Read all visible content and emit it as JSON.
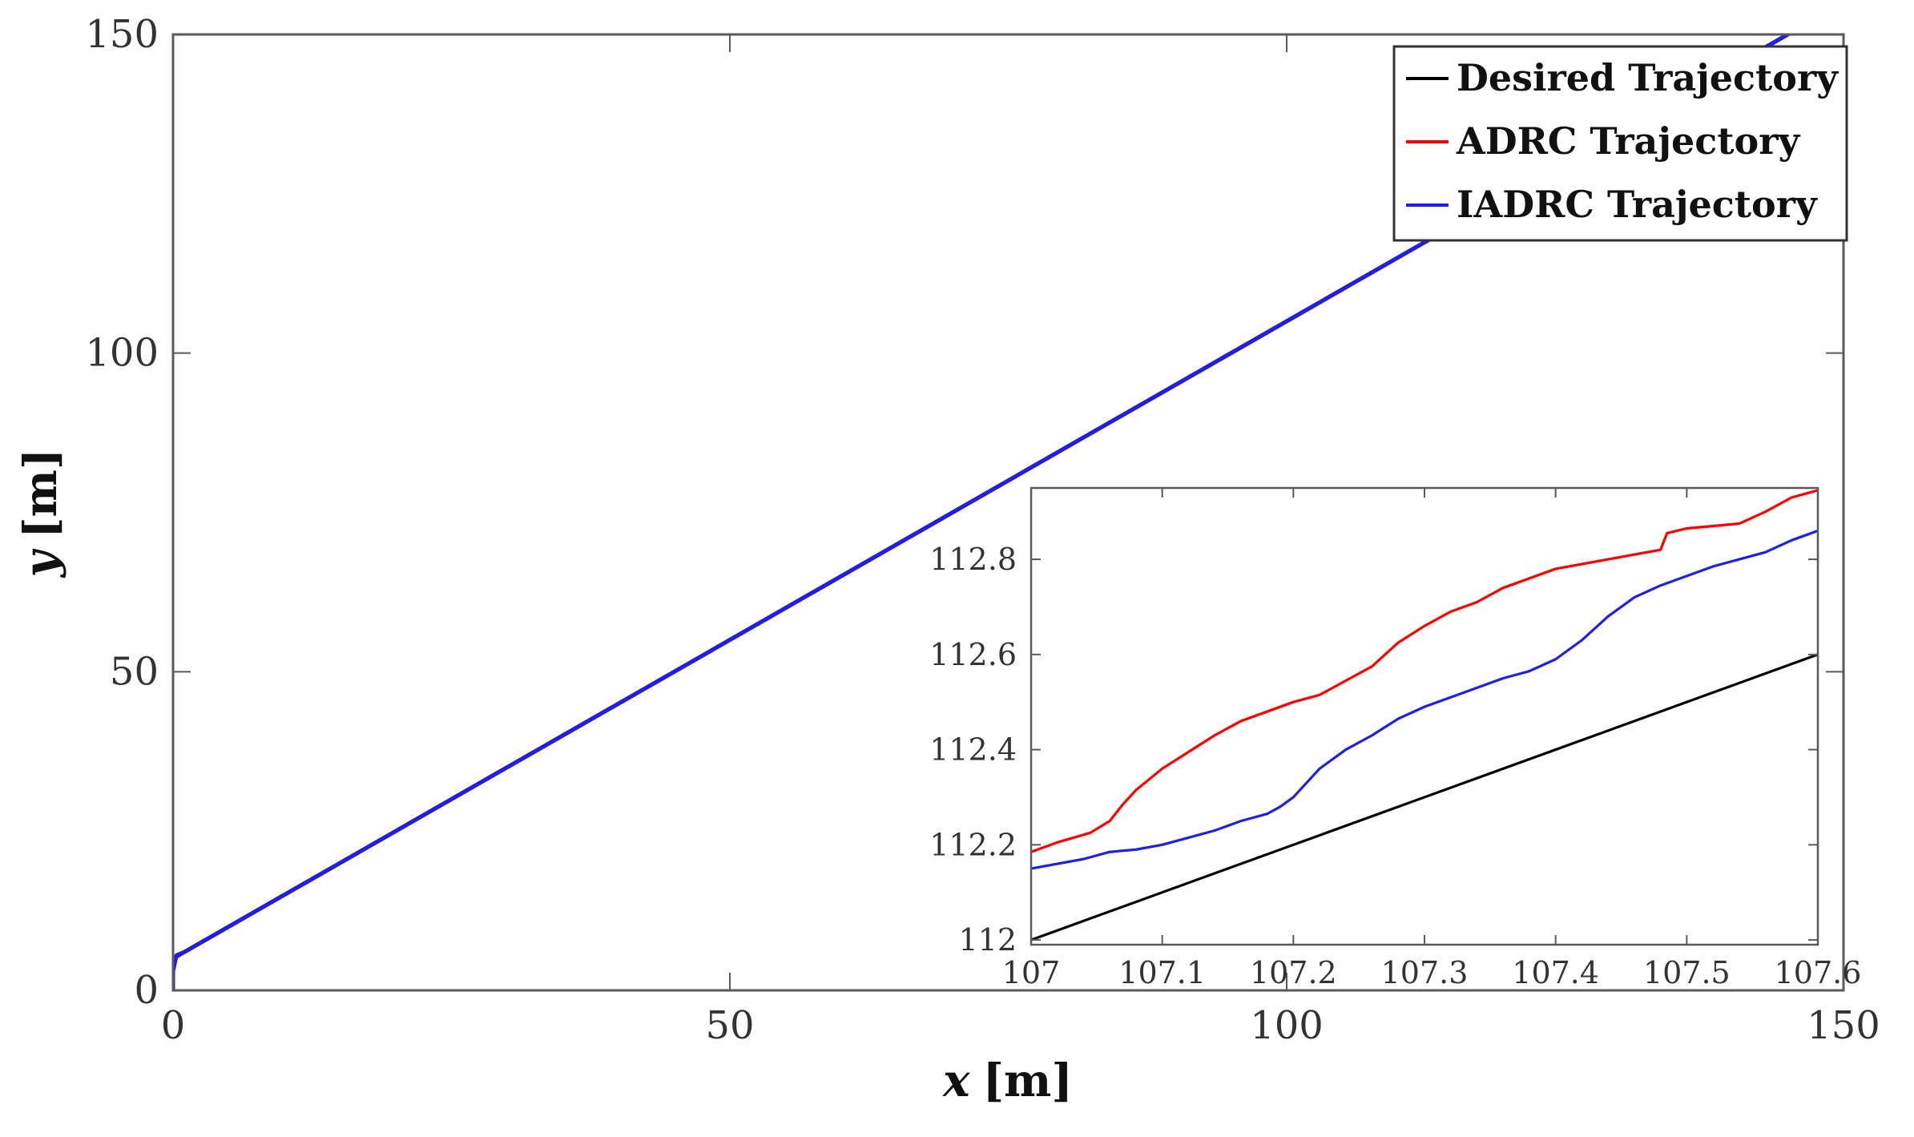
{
  "chart_data": [
    {
      "type": "line",
      "xlabel_var": "x",
      "xlabel_unit": "[m]",
      "ylabel_var": "y",
      "ylabel_unit": "[m]",
      "xlim": [
        0,
        150
      ],
      "ylim": [
        0,
        150
      ],
      "xticks": [
        0,
        50,
        100,
        150
      ],
      "yticks": [
        0,
        50,
        100,
        150
      ],
      "xtick_labels": [
        "0",
        "50",
        "100",
        "150"
      ],
      "ytick_labels": [
        "0",
        "50",
        "100",
        "150"
      ],
      "grid": false,
      "legend_position": "top-right",
      "series": [
        {
          "name": "Desired Trajectory",
          "color": "#000000",
          "x": [
            0,
            150
          ],
          "y": [
            5,
            155
          ]
        },
        {
          "name": "ADRC Trajectory",
          "color": "#ff0000",
          "x": [
            0,
            0,
            0.3,
            1,
            150
          ],
          "y": [
            0,
            3,
            5.5,
            6,
            155
          ]
        },
        {
          "name": "IADRC Trajectory",
          "color": "#1f1fe6",
          "x": [
            0,
            0,
            0.3,
            1,
            20,
            40,
            60,
            80,
            100,
            150
          ],
          "y": [
            0,
            3,
            5.5,
            6,
            25,
            45,
            65,
            85,
            105,
            155
          ]
        }
      ]
    },
    {
      "type": "line",
      "inset": true,
      "xlim": [
        107,
        107.6
      ],
      "ylim": [
        111.99,
        112.95
      ],
      "xticks": [
        107,
        107.1,
        107.2,
        107.3,
        107.4,
        107.5,
        107.6
      ],
      "yticks": [
        112,
        112.2,
        112.4,
        112.6,
        112.8
      ],
      "xtick_labels": [
        "107",
        "107.1",
        "107.2",
        "107.3",
        "107.4",
        "107.5",
        "107.6"
      ],
      "ytick_labels": [
        "112",
        "112.2",
        "112.4",
        "112.6",
        "112.8"
      ],
      "series": [
        {
          "name": "Desired Trajectory",
          "color": "#000000",
          "x": [
            107,
            107.6
          ],
          "y": [
            112.0,
            112.6
          ]
        },
        {
          "name": "ADRC Trajectory",
          "color": "#ff0000",
          "x": [
            107,
            107.02,
            107.045,
            107.06,
            107.07,
            107.08,
            107.1,
            107.12,
            107.14,
            107.16,
            107.18,
            107.2,
            107.22,
            107.24,
            107.26,
            107.28,
            107.3,
            107.32,
            107.34,
            107.36,
            107.38,
            107.4,
            107.42,
            107.44,
            107.46,
            107.48,
            107.485,
            107.5,
            107.52,
            107.54,
            107.56,
            107.58,
            107.6
          ],
          "y": [
            112.185,
            112.205,
            112.225,
            112.25,
            112.285,
            112.315,
            112.36,
            112.395,
            112.43,
            112.46,
            112.48,
            112.5,
            112.515,
            112.545,
            112.575,
            112.625,
            112.66,
            112.69,
            112.71,
            112.74,
            112.76,
            112.78,
            112.79,
            112.8,
            112.81,
            112.82,
            112.855,
            112.865,
            112.87,
            112.875,
            112.9,
            112.93,
            112.945
          ]
        },
        {
          "name": "IADRC Trajectory",
          "color": "#1f1fe6",
          "x": [
            107,
            107.02,
            107.04,
            107.06,
            107.08,
            107.1,
            107.12,
            107.14,
            107.16,
            107.18,
            107.19,
            107.2,
            107.22,
            107.24,
            107.26,
            107.28,
            107.3,
            107.32,
            107.34,
            107.36,
            107.38,
            107.4,
            107.42,
            107.44,
            107.46,
            107.48,
            107.5,
            107.52,
            107.54,
            107.56,
            107.58,
            107.6
          ],
          "y": [
            112.15,
            112.16,
            112.17,
            112.185,
            112.19,
            112.2,
            112.215,
            112.23,
            112.25,
            112.265,
            112.28,
            112.3,
            112.36,
            112.4,
            112.43,
            112.465,
            112.49,
            112.51,
            112.53,
            112.55,
            112.565,
            112.59,
            112.63,
            112.68,
            112.72,
            112.745,
            112.765,
            112.785,
            112.8,
            112.815,
            112.84,
            112.86
          ]
        }
      ]
    }
  ]
}
